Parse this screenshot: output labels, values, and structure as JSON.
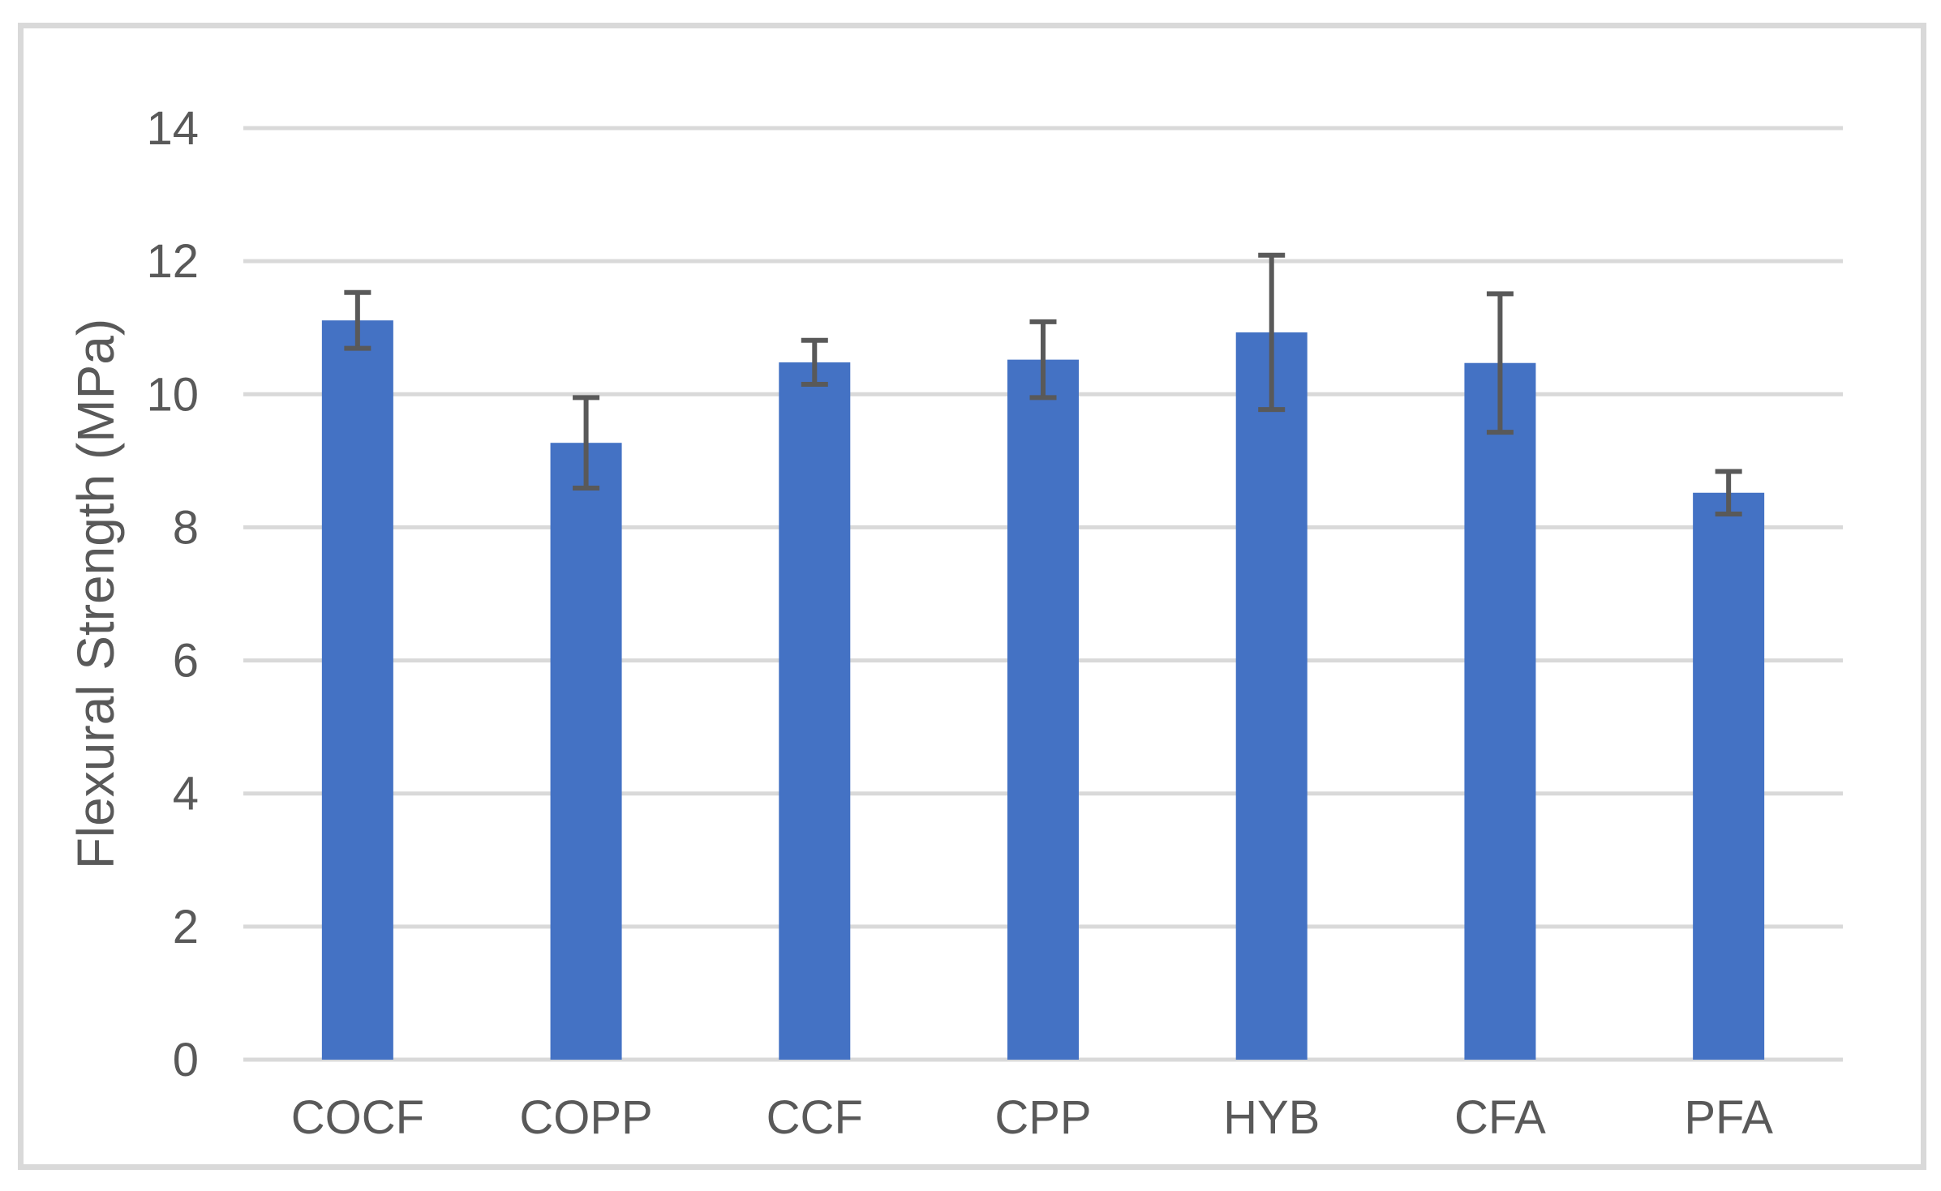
{
  "chart_data": {
    "type": "bar",
    "title": "",
    "xlabel": "",
    "ylabel": "Flexural Strength (MPa)",
    "categories": [
      "COCF",
      "COPP",
      "CCF",
      "CPP",
      "HYB",
      "CFA",
      "PFA"
    ],
    "values": [
      11.11,
      9.27,
      10.48,
      10.52,
      10.93,
      10.47,
      8.52
    ],
    "error_bars": [
      0.42,
      0.68,
      0.33,
      0.57,
      1.16,
      1.04,
      0.32
    ],
    "ylim": [
      0,
      14
    ],
    "yticks": [
      0,
      2,
      4,
      6,
      8,
      10,
      12,
      14
    ],
    "grid": "horizontal",
    "legend": "none",
    "colors": {
      "bar": "#4472C4",
      "error_bar": "#595959",
      "gridline": "#D9D9D9",
      "axis_line": "#D9D9D9",
      "tick_text": "#595959",
      "axis_title_text": "#595959",
      "frame_border": "#D9D9D9",
      "background": "#FFFFFF"
    }
  }
}
